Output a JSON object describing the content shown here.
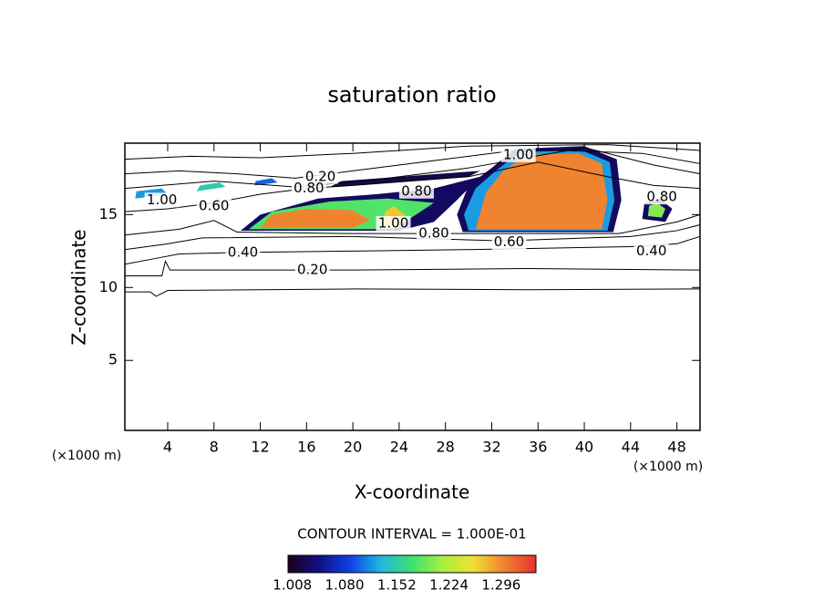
{
  "chart_data": {
    "type": "contour",
    "title": "saturation ratio",
    "x_label": "X-coordinate",
    "y_label": "Z-coordinate",
    "x_unit": "(×1000 m)",
    "y_unit": "(×1000 m)",
    "xlim": [
      0.3,
      50
    ],
    "ylim": [
      0.2,
      19.9
    ],
    "xticks": [
      4,
      8,
      12,
      16,
      20,
      24,
      28,
      32,
      36,
      40,
      44,
      48
    ],
    "yticks": [
      5,
      10,
      15
    ],
    "contour_interval": "CONTOUR INTERVAL = 1.000E-01",
    "line_color": "#000000",
    "contours": [
      {
        "x": [
          0.3,
          2.5,
          3,
          4,
          12,
          20,
          35,
          50
        ],
        "y": [
          9.7,
          9.7,
          9.4,
          9.8,
          9.85,
          9.9,
          9.85,
          9.9
        ]
      },
      {
        "x": [
          0.3,
          3.5,
          3.8,
          4.2,
          12,
          20,
          35,
          50
        ],
        "y": [
          10.8,
          10.8,
          11.8,
          11.2,
          11.2,
          11.2,
          11.3,
          11.2
        ]
      },
      {
        "x": [
          0.3,
          3,
          5,
          10,
          20,
          30,
          44,
          48,
          50
        ],
        "y": [
          11.6,
          12.0,
          12.3,
          12.4,
          12.5,
          12.6,
          12.8,
          13.0,
          13.5
        ]
      },
      {
        "x": [
          0.3,
          4,
          7,
          20,
          33,
          44,
          48,
          50
        ],
        "y": [
          12.6,
          13.0,
          13.4,
          13.5,
          13.2,
          13.5,
          13.9,
          14.3
        ]
      },
      {
        "x": [
          0.3,
          5,
          8,
          10,
          20,
          30,
          43,
          48,
          50
        ],
        "y": [
          13.6,
          14.0,
          14.6,
          13.8,
          13.7,
          13.7,
          13.7,
          14.5,
          15.0
        ]
      },
      {
        "x": [
          0.3,
          4,
          8,
          12,
          16,
          20,
          30,
          36,
          42,
          46,
          50
        ],
        "y": [
          15.2,
          15.4,
          15.8,
          16.4,
          16.8,
          17.0,
          17.6,
          18.6,
          17.6,
          17.0,
          16.8
        ]
      },
      {
        "x": [
          0.3,
          5,
          10,
          15,
          25,
          35,
          45,
          50
        ],
        "y": [
          17.8,
          18.0,
          17.8,
          17.5,
          18.5,
          19.5,
          19.2,
          18.5
        ]
      },
      {
        "x": [
          0.3,
          8,
          15,
          22,
          30,
          40,
          46,
          50
        ],
        "y": [
          16.8,
          17.3,
          16.9,
          17.4,
          18.2,
          19.6,
          18.4,
          17.8
        ]
      },
      {
        "x": [
          0.3,
          6,
          12,
          20,
          30,
          42,
          50
        ],
        "y": [
          18.8,
          19.0,
          18.9,
          19.2,
          19.7,
          19.8,
          19.4
        ]
      }
    ],
    "contour_labels": [
      {
        "x": 16.5,
        "y": 11.2,
        "label": "0.20"
      },
      {
        "x": 10.5,
        "y": 12.4,
        "label": "0.40"
      },
      {
        "x": 45.8,
        "y": 12.5,
        "label": "0.40"
      },
      {
        "x": 33.5,
        "y": 13.1,
        "label": "0.60"
      },
      {
        "x": 27.0,
        "y": 13.7,
        "label": "0.80"
      },
      {
        "x": 8.0,
        "y": 15.6,
        "label": "0.60"
      },
      {
        "x": 46.7,
        "y": 16.2,
        "label": "0.80"
      },
      {
        "x": 17.2,
        "y": 17.6,
        "label": "0.20"
      },
      {
        "x": 16.2,
        "y": 16.8,
        "label": "0.80"
      },
      {
        "x": 25.5,
        "y": 16.6,
        "label": "0.80"
      },
      {
        "x": 34.3,
        "y": 19.1,
        "label": "1.00"
      },
      {
        "x": 23.5,
        "y": 14.4,
        "label": "1.00"
      },
      {
        "x": 3.5,
        "y": 16.0,
        "label": "1.00"
      }
    ],
    "shaded": [
      {
        "level": 1.03,
        "x": [
          29.5,
          42.5,
          43.2,
          42.8,
          40,
          34,
          32,
          30,
          29
        ],
        "y": [
          13.8,
          13.8,
          16,
          18.8,
          19.7,
          19.5,
          18.2,
          17,
          15
        ]
      },
      {
        "level": 1.03,
        "x": [
          10.3,
          24,
          27,
          29,
          31,
          27,
          22,
          17,
          12
        ],
        "y": [
          13.9,
          13.9,
          14.5,
          16,
          17.6,
          16.8,
          16.4,
          16.1,
          15
        ]
      },
      {
        "level": 1.12,
        "x": [
          30,
          42,
          42.6,
          42.2,
          39.8,
          34.5,
          32.5,
          30.6,
          29.6
        ],
        "y": [
          13.9,
          13.9,
          16,
          18.6,
          19.4,
          19.3,
          18.1,
          16.8,
          15
        ]
      },
      {
        "level": 1.18,
        "x": [
          11,
          22,
          24.5,
          27,
          23,
          18,
          13
        ],
        "y": [
          14.0,
          14.0,
          14.5,
          15.8,
          16.1,
          15.9,
          15.2
        ]
      },
      {
        "level": 1.3,
        "x": [
          30.6,
          41.5,
          42,
          41.5,
          39.5,
          35,
          33,
          31.5
        ],
        "y": [
          14,
          14,
          16,
          18.5,
          19.2,
          19.1,
          18,
          16.5
        ]
      },
      {
        "level": 1.3,
        "x": [
          12,
          20,
          21.5,
          20,
          16,
          13
        ],
        "y": [
          14.1,
          14.1,
          14.6,
          15.3,
          15.4,
          15
        ]
      },
      {
        "level": 1.27,
        "x": [
          22.5,
          24,
          24.5,
          23.5,
          22.8
        ],
        "y": [
          14,
          14.1,
          15,
          15.6,
          15.2
        ]
      },
      {
        "level": 1.03,
        "x": [
          45,
          47,
          47.6,
          46.5,
          45.2
        ],
        "y": [
          14.7,
          14.5,
          15.4,
          16.1,
          15.8
        ]
      },
      {
        "level": 1.2,
        "x": [
          45.5,
          46.7,
          47,
          46.3,
          45.6
        ],
        "y": [
          14.9,
          14.8,
          15.4,
          15.8,
          15.6
        ]
      },
      {
        "level": 1.12,
        "x": [
          1.2,
          4,
          3.5,
          1.3
        ],
        "y": [
          16.1,
          16.4,
          16.8,
          16.6
        ]
      },
      {
        "level": 1.15,
        "x": [
          6.5,
          9,
          8.5,
          6.8
        ],
        "y": [
          16.6,
          16.9,
          17.2,
          17.0
        ]
      },
      {
        "level": 1.1,
        "x": [
          11.5,
          13.5,
          13,
          11.6
        ],
        "y": [
          17.0,
          17.2,
          17.5,
          17.3
        ]
      },
      {
        "level": 1.02,
        "x": [
          18,
          30,
          31,
          19
        ],
        "y": [
          16.9,
          17.6,
          18.0,
          17.3
        ]
      }
    ],
    "colorbar": {
      "lim": [
        1.002,
        1.344
      ],
      "ticks": [
        1.008,
        {
          "value": 1.08,
          "label": "1.080"
        },
        1.152,
        1.224,
        1.296
      ],
      "colors": [
        "#1a0020",
        "#101080",
        "#1040e8",
        "#20b8e0",
        "#40e070",
        "#a8f040",
        "#f0e030",
        "#f08030",
        "#e83030"
      ]
    }
  }
}
